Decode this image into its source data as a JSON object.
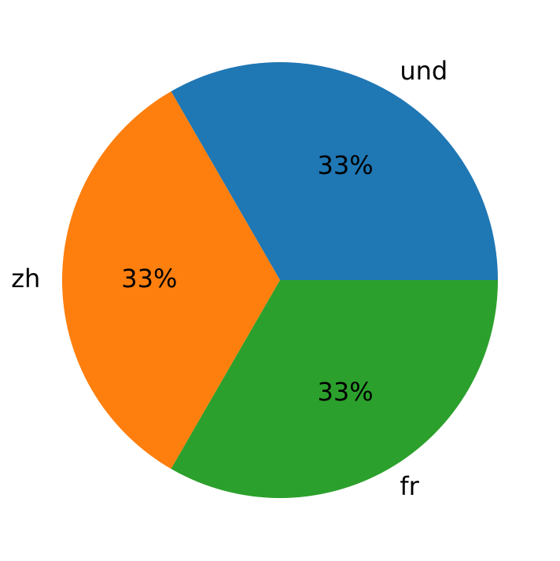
{
  "chart_data": {
    "type": "pie",
    "categories": [
      "und",
      "zh",
      "fr"
    ],
    "values": [
      33.3,
      33.3,
      33.3
    ],
    "value_labels": [
      "33%",
      "33%",
      "33%"
    ],
    "colors": [
      "#1f77b4",
      "#ff7f0e",
      "#2ca02c"
    ]
  }
}
